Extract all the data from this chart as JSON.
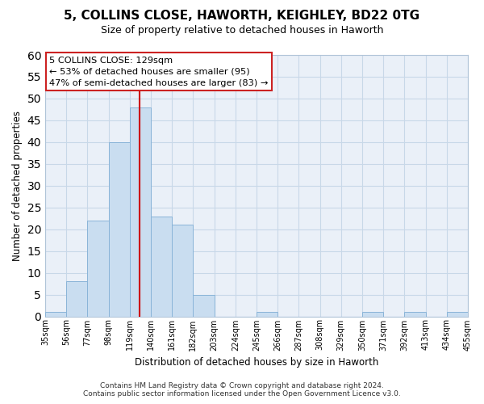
{
  "title": "5, COLLINS CLOSE, HAWORTH, KEIGHLEY, BD22 0TG",
  "subtitle": "Size of property relative to detached houses in Haworth",
  "xlabel": "Distribution of detached houses by size in Haworth",
  "ylabel": "Number of detached properties",
  "bin_edges": [
    35,
    56,
    77,
    98,
    119,
    140,
    161,
    182,
    203,
    224,
    245,
    266,
    287,
    308,
    329,
    350,
    371,
    392,
    413,
    434,
    455
  ],
  "bar_heights": [
    1,
    8,
    22,
    40,
    48,
    23,
    21,
    5,
    0,
    0,
    1,
    0,
    0,
    0,
    0,
    1,
    0,
    1,
    0,
    1
  ],
  "bar_color": "#c9ddf0",
  "bar_edge_color": "#8ab4d8",
  "vline_x": 129,
  "vline_color": "#cc0000",
  "ylim": [
    0,
    60
  ],
  "yticks": [
    0,
    5,
    10,
    15,
    20,
    25,
    30,
    35,
    40,
    45,
    50,
    55,
    60
  ],
  "annotation_title": "5 COLLINS CLOSE: 129sqm",
  "annotation_line1": "← 53% of detached houses are smaller (95)",
  "annotation_line2": "47% of semi-detached houses are larger (83) →",
  "footer_line1": "Contains HM Land Registry data © Crown copyright and database right 2024.",
  "footer_line2": "Contains public sector information licensed under the Open Government Licence v3.0.",
  "tick_labels": [
    "35sqm",
    "56sqm",
    "77sqm",
    "98sqm",
    "119sqm",
    "140sqm",
    "161sqm",
    "182sqm",
    "203sqm",
    "224sqm",
    "245sqm",
    "266sqm",
    "287sqm",
    "308sqm",
    "329sqm",
    "350sqm",
    "371sqm",
    "392sqm",
    "413sqm",
    "434sqm",
    "455sqm"
  ],
  "background_color": "#ffffff",
  "plot_bg_color": "#eaf0f8",
  "grid_color": "#c8d8e8"
}
